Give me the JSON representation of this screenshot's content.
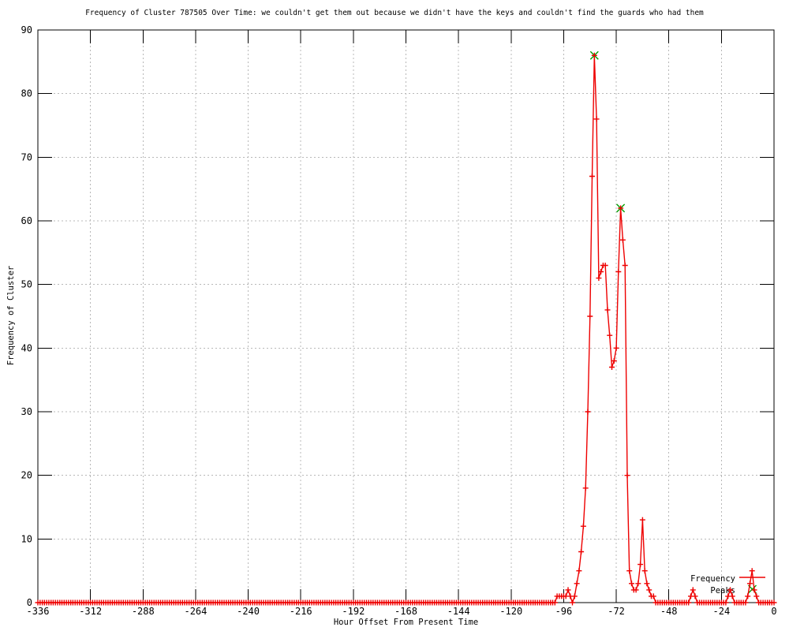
{
  "title": "Frequency of Cluster 787505 Over Time: we couldn't get them out because we didn't have the keys and couldn't find the guards who had them",
  "axes": {
    "xlabel": "Hour Offset From Present Time",
    "ylabel": "Frequency of Cluster",
    "x_ticks": [
      -336,
      -312,
      -288,
      -264,
      -240,
      -216,
      -192,
      -168,
      -144,
      -120,
      -96,
      -72,
      -48,
      -24,
      0
    ],
    "y_ticks": [
      0,
      10,
      20,
      30,
      40,
      50,
      60,
      70,
      80,
      90
    ]
  },
  "legend": {
    "items": [
      {
        "label": "Frequency",
        "type": "line"
      },
      {
        "label": "Peaks",
        "type": "cross"
      }
    ]
  },
  "colors": {
    "frequency": "#ee0000",
    "peaks": "#00a000",
    "grid": "#b8b8b8",
    "axis": "#000000",
    "background": "#ffffff"
  },
  "chart_data": {
    "type": "line",
    "title": "Frequency of Cluster 787505 Over Time: we couldn't get them out because we didn't have the keys and couldn't find the guards who had them",
    "xlabel": "Hour Offset From Present Time",
    "ylabel": "Frequency of Cluster",
    "xlim": [
      -336,
      0
    ],
    "ylim": [
      0,
      90
    ],
    "grid": true,
    "legend_position": "bottom-right",
    "x_start": -336,
    "x_end": 0,
    "x_step": 1,
    "series": [
      {
        "name": "Frequency",
        "color": "#ee0000",
        "marker": "plus",
        "default_value": 0,
        "segments": [
          {
            "start_hour": -99,
            "values": [
              1,
              1,
              1,
              1,
              1,
              2,
              1,
              0,
              1,
              3,
              5,
              8,
              12,
              18,
              30,
              45,
              67,
              86,
              76,
              51,
              52,
              53,
              53,
              46,
              42,
              37,
              38,
              40,
              52,
              62,
              57,
              53,
              20,
              5,
              3,
              2,
              2,
              3,
              6,
              13,
              5,
              3,
              2,
              1,
              1
            ]
          },
          {
            "start_hour": -38,
            "values": [
              1,
              2,
              1
            ]
          },
          {
            "start_hour": -21,
            "values": [
              1,
              2,
              1
            ]
          },
          {
            "start_hour": -12,
            "values": [
              1,
              3,
              5,
              2,
              1
            ]
          }
        ]
      },
      {
        "name": "Peaks",
        "color": "#00a000",
        "marker": "x",
        "points": [
          [
            -82,
            86
          ],
          [
            -70,
            62
          ]
        ]
      }
    ]
  }
}
